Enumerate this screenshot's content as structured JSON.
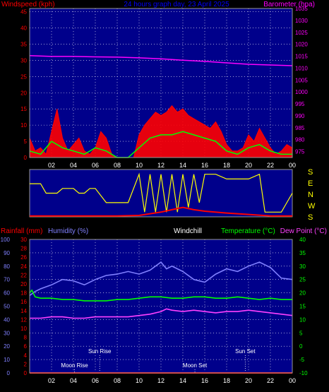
{
  "chart_data": [
    {
      "type": "line",
      "title": "24 hours graph day, 23 April 2025",
      "left_axis_label": "Windspeed (kph)",
      "right_axis_label": "Barometer (hpa)",
      "x_tick_labels": [
        "02",
        "04",
        "06",
        "08",
        "10",
        "12",
        "14",
        "16",
        "18",
        "20",
        "22",
        "00"
      ],
      "left_ylim": [
        0,
        46
      ],
      "left_ticks": [
        "0",
        "5",
        "10",
        "15",
        "20",
        "25",
        "30",
        "35",
        "40",
        "45"
      ],
      "right_ylim": [
        972.5,
        1035
      ],
      "right_ticks": [
        "975",
        "980",
        "985",
        "990",
        "995",
        "1000",
        "1005",
        "1010",
        "1015",
        "1020",
        "1025",
        "1030",
        "1035"
      ],
      "grid": true,
      "series": [
        {
          "color": "#ff0000",
          "hours": [
            0,
            0.5,
            1,
            1.5,
            2,
            2.5,
            3,
            3.5,
            4,
            4.5,
            5,
            5.5,
            6,
            6.5,
            7,
            7.5,
            8,
            8.5,
            9,
            9.5,
            10,
            10.5,
            11,
            11.5,
            12,
            12.5,
            13,
            13.5,
            14,
            14.5,
            15,
            15.5,
            16,
            16.5,
            17,
            17.5,
            18,
            18.5,
            19,
            19.5,
            20,
            20.5,
            21,
            21.5,
            22,
            22.5,
            23,
            23.5,
            24
          ],
          "values": [
            6,
            2,
            3,
            1,
            8,
            15,
            6,
            2,
            4,
            6,
            2,
            1,
            3,
            8,
            6,
            1,
            0,
            0,
            0,
            0,
            7,
            10,
            12,
            14,
            13,
            14,
            16,
            14,
            15,
            13,
            12,
            11,
            10,
            9,
            11,
            8,
            4,
            2,
            2,
            3,
            7,
            5,
            9,
            6,
            3,
            1,
            2,
            4,
            3
          ]
        },
        {
          "color": "#00ff00",
          "hours": [
            0,
            1,
            2,
            3,
            4,
            5,
            6,
            7,
            8,
            9,
            10,
            11,
            12,
            13,
            14,
            15,
            16,
            17,
            18,
            19,
            20,
            21,
            22,
            23,
            24
          ],
          "values": [
            2,
            1,
            5,
            3,
            2,
            1,
            3,
            2,
            0,
            0,
            3,
            6,
            7,
            7,
            8,
            7,
            6,
            5,
            2,
            1,
            3,
            4,
            2,
            1,
            1
          ]
        },
        {
          "color": "#ff00ff",
          "hours": [
            0,
            2,
            4,
            6,
            8,
            10,
            12,
            14,
            16,
            18,
            20,
            22,
            24
          ],
          "values": [
            1015.2,
            1014.9,
            1014.9,
            1014.7,
            1014.6,
            1014.3,
            1013.9,
            1013.3,
            1012.8,
            1012.2,
            1011.6,
            1011.3,
            1011
          ]
        }
      ]
    },
    {
      "type": "line",
      "title": "",
      "right_labels": [
        "S",
        "E",
        "N",
        "W",
        "S"
      ],
      "x_tick_labels": [
        "02",
        "04",
        "06",
        "08",
        "10",
        "12",
        "14",
        "16",
        "18",
        "20",
        "22",
        "00"
      ],
      "series": [
        {
          "name": "direction",
          "color": "#ffff00",
          "hours": [
            0,
            1,
            1.5,
            2.5,
            3,
            3.5,
            4,
            4.5,
            5,
            5.5,
            6,
            7,
            8,
            9,
            10,
            10.5,
            11,
            11.5,
            12,
            12.5,
            13,
            13.5,
            14,
            14.5,
            15,
            15.5,
            16,
            17,
            18,
            19,
            20,
            21,
            21.5,
            22,
            23,
            24
          ],
          "values": [
            0.7,
            0.7,
            0.5,
            0.5,
            0.6,
            0.6,
            0.6,
            0.5,
            0.5,
            0.6,
            0.6,
            0.3,
            0.3,
            0.3,
            0.9,
            0.1,
            0.9,
            0.1,
            0.9,
            0.1,
            0.9,
            0.1,
            0.9,
            0.2,
            0.9,
            0.3,
            0.9,
            0.9,
            0.8,
            0.8,
            0.8,
            0.9,
            0.1,
            0.1,
            0.1,
            0.5
          ]
        },
        {
          "name": "speed",
          "color": "#ff0000",
          "hours": [
            0,
            2,
            4,
            6,
            8,
            10,
            12,
            13,
            14,
            15,
            16,
            18,
            20,
            22,
            24
          ],
          "values": [
            0.02,
            0.02,
            0.02,
            0.02,
            0.02,
            0.03,
            0.1,
            0.15,
            0.2,
            0.15,
            0.12,
            0.08,
            0.05,
            0.02,
            0.02
          ]
        }
      ]
    },
    {
      "type": "line",
      "rainfall_label": "Rainfall (mm)",
      "humidity_label": "Humidity (%)",
      "windchill_label": "Windchill",
      "temperature_label": "Temperature (°C)",
      "dewpoint_label": "Dew Point (°C)",
      "x_tick_labels": [
        "02",
        "04",
        "06",
        "08",
        "10",
        "12",
        "14",
        "16",
        "18",
        "20",
        "22",
        "00"
      ],
      "humidity_ylim": [
        0,
        100
      ],
      "humidity_ticks": [
        "0",
        "10",
        "20",
        "30",
        "40",
        "50",
        "60",
        "70",
        "80",
        "90",
        "100"
      ],
      "rain_ylim": [
        0,
        30
      ],
      "rain_ticks": [
        "0",
        "2",
        "4",
        "6",
        "8",
        "10",
        "12",
        "14",
        "16",
        "18",
        "20",
        "22",
        "24",
        "26",
        "28",
        "30"
      ],
      "temp_ylim": [
        -10,
        40
      ],
      "temp_ticks": [
        "-10",
        "-5",
        "0",
        "5",
        "10",
        "15",
        "20",
        "25",
        "30",
        "35",
        "40"
      ],
      "annotations": [
        {
          "label": "Sun Rise",
          "hour": 6.4
        },
        {
          "label": "Moon Rise",
          "hour": 4.1
        },
        {
          "label": "Moon Set",
          "hour": 15.1
        },
        {
          "label": "Sun Set",
          "hour": 19.7
        }
      ],
      "series": [
        {
          "name": "Humidity (%)",
          "color": "#8080ff",
          "hours": [
            0,
            0.5,
            1,
            2,
            3,
            4,
            5,
            6,
            7,
            8,
            9,
            10,
            11,
            12,
            12.5,
            13,
            14,
            15,
            16,
            17,
            18,
            19,
            20,
            21,
            22,
            23,
            24
          ],
          "values": [
            58,
            61,
            63,
            66,
            70,
            69,
            66,
            70,
            73,
            74,
            76,
            74,
            77,
            83,
            78,
            80,
            76,
            70,
            68,
            74,
            78,
            76,
            80,
            83,
            79,
            71,
            70
          ]
        },
        {
          "name": "Temperature (°C)",
          "color": "#00ff00",
          "hours": [
            0,
            0.2,
            0.5,
            1,
            2,
            3,
            4,
            5,
            6,
            7,
            8,
            9,
            10,
            11,
            12,
            13,
            14,
            15,
            16,
            17,
            18,
            19,
            20,
            21,
            22,
            23,
            24
          ],
          "values": [
            20,
            21,
            18.5,
            18,
            18,
            17.5,
            17.5,
            17,
            17,
            17,
            17.5,
            17.5,
            18,
            18.5,
            18.5,
            18,
            18,
            18.5,
            18.5,
            18,
            18,
            18.5,
            18,
            17.5,
            18,
            17.5,
            17.5
          ]
        },
        {
          "name": "Dew Point (°C)",
          "color": "#ff40ff",
          "hours": [
            0,
            1,
            2,
            3,
            4,
            5,
            6,
            7,
            8,
            9,
            10,
            11,
            12,
            12.5,
            13,
            14,
            15,
            16,
            17,
            18,
            19,
            20,
            21,
            22,
            23,
            24
          ],
          "values": [
            10.5,
            10.5,
            11,
            11,
            10.5,
            10.5,
            11,
            11,
            11,
            11,
            11.5,
            12,
            13,
            14,
            13.5,
            13,
            13.5,
            13,
            12.5,
            13,
            13,
            13.5,
            13,
            12.5,
            12,
            11.5
          ]
        },
        {
          "name": "Rainfall (mm)",
          "color": "#ff0000",
          "hours": [
            0,
            24
          ],
          "values": [
            0,
            0
          ]
        }
      ]
    }
  ]
}
